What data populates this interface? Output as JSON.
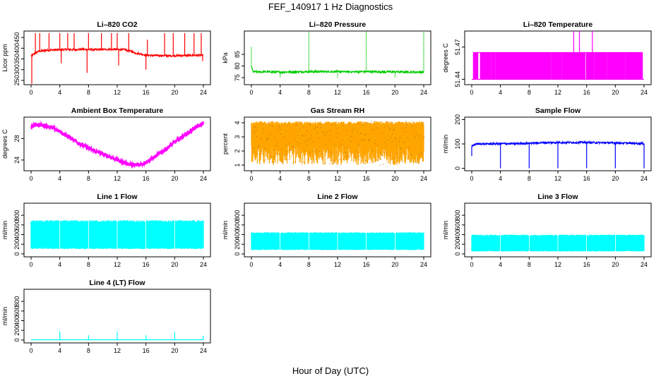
{
  "figure": {
    "title": "FEF_140917  1 Hz Diagnostics",
    "xlabel": "Hour of Day (UTC)"
  },
  "chart_data": [
    {
      "type": "line",
      "title": "Li–820 CO2",
      "ylabel": "Licor ppm",
      "color": "#ff0000",
      "xlim": [
        0,
        24
      ],
      "ylim": [
        230,
        480
      ],
      "xticks": [
        0,
        4,
        8,
        12,
        16,
        20,
        24
      ],
      "yticks": [
        250,
        300,
        350,
        400,
        450
      ],
      "series": [
        {
          "x": [
            0,
            0.3,
            0.5,
            1,
            2,
            3,
            4,
            5,
            6,
            7,
            8,
            9,
            10,
            11,
            12,
            13,
            14,
            14.5,
            15,
            15.5,
            16,
            17,
            18,
            19,
            20,
            21,
            22,
            23,
            24
          ],
          "y": [
            365,
            370,
            375,
            385,
            390,
            392,
            393,
            394,
            393,
            395,
            394,
            393,
            394,
            395,
            394,
            393,
            385,
            378,
            375,
            372,
            368,
            366,
            366,
            365,
            365,
            366,
            366,
            367,
            367
          ]
        }
      ],
      "spikes": [
        {
          "x": 0.1,
          "y": 235
        },
        {
          "x": 0.6,
          "y": 470
        },
        {
          "x": 1.2,
          "y": 470
        },
        {
          "x": 2.5,
          "y": 470
        },
        {
          "x": 4,
          "y": 470
        },
        {
          "x": 4.2,
          "y": 330
        },
        {
          "x": 5.1,
          "y": 470
        },
        {
          "x": 6,
          "y": 470
        },
        {
          "x": 7.8,
          "y": 285
        },
        {
          "x": 8,
          "y": 470
        },
        {
          "x": 9.8,
          "y": 470
        },
        {
          "x": 11.2,
          "y": 470
        },
        {
          "x": 12,
          "y": 470
        },
        {
          "x": 12.2,
          "y": 320
        },
        {
          "x": 13.6,
          "y": 470
        },
        {
          "x": 16,
          "y": 300
        },
        {
          "x": 16.2,
          "y": 440
        },
        {
          "x": 18.6,
          "y": 470
        },
        {
          "x": 19.8,
          "y": 470
        },
        {
          "x": 21.4,
          "y": 470
        },
        {
          "x": 22.7,
          "y": 470
        },
        {
          "x": 23.7,
          "y": 470
        },
        {
          "x": 23.9,
          "y": 340
        }
      ]
    },
    {
      "type": "line",
      "title": "Li–820 Pressure",
      "ylabel": "kPa",
      "color": "#00cc00",
      "xlim": [
        0,
        24
      ],
      "ylim": [
        72,
        95
      ],
      "xticks": [
        0,
        4,
        8,
        12,
        16,
        20,
        24
      ],
      "yticks": [
        75,
        80,
        85
      ],
      "series": [
        {
          "x": [
            0,
            0.2,
            0.5,
            2,
            4,
            6,
            8,
            10,
            12,
            14,
            16,
            18,
            20,
            22,
            24
          ],
          "y": [
            80,
            77.6,
            77.5,
            77.5,
            77.4,
            77.5,
            77.6,
            77.6,
            77.6,
            77.5,
            77.6,
            77.5,
            77.5,
            77.4,
            77.4
          ]
        }
      ],
      "spikes": [
        {
          "x": 0,
          "y": 88
        },
        {
          "x": 4,
          "y": 75
        },
        {
          "x": 8,
          "y": 95
        },
        {
          "x": 12,
          "y": 75
        },
        {
          "x": 16,
          "y": 95
        },
        {
          "x": 20,
          "y": 75
        },
        {
          "x": 24,
          "y": 95
        }
      ]
    },
    {
      "type": "line",
      "title": "Li–820 Temperature",
      "ylabel": "degrees C",
      "color": "#ff00ff",
      "xlim": [
        0,
        24
      ],
      "ylim": [
        51.435,
        51.485
      ],
      "xticks": [
        0,
        4,
        8,
        12,
        16,
        20,
        24
      ],
      "yticks": [
        51.44,
        51.47
      ],
      "levels": [
        51.44,
        51.465
      ],
      "band": {
        "x": [
          0,
          24
        ]
      },
      "spikes": [
        {
          "x": 14.2,
          "y": 51.485
        },
        {
          "x": 15,
          "y": 51.485
        },
        {
          "x": 16.8,
          "y": 51.485
        }
      ]
    },
    {
      "type": "line",
      "title": "Ambient Box Temperature",
      "ylabel": "degrees C",
      "color": "#ff00ff",
      "xlim": [
        0,
        24
      ],
      "ylim": [
        22,
        32
      ],
      "xticks": [
        0,
        4,
        8,
        12,
        16,
        20,
        24
      ],
      "yticks": [
        24,
        28
      ],
      "series": [
        {
          "x": [
            0,
            0.5,
            1,
            2,
            3,
            4,
            5,
            6,
            7,
            8,
            9,
            10,
            11,
            12,
            13,
            14,
            14.5,
            15,
            16,
            17,
            18,
            19,
            20,
            21,
            22,
            23,
            24
          ],
          "y": [
            30.2,
            30.5,
            30.6,
            30.4,
            30.0,
            29.3,
            28.5,
            27.7,
            26.9,
            26.2,
            25.6,
            25.1,
            24.6,
            24.0,
            23.5,
            23.1,
            23.0,
            23.1,
            23.6,
            24.4,
            25.3,
            26.3,
            27.3,
            28.3,
            29.2,
            30.1,
            30.9
          ]
        }
      ]
    },
    {
      "type": "line",
      "title": "Gas Stream RH",
      "ylabel": "percent",
      "color": "#ffa500",
      "xlim": [
        0,
        24
      ],
      "ylim": [
        0.6,
        4.4
      ],
      "xticks": [
        0,
        4,
        8,
        12,
        16,
        20,
        24
      ],
      "yticks": [
        1,
        2,
        3,
        4
      ],
      "band": {
        "x": [
          0,
          24
        ],
        "upper": 4.1,
        "lower": 1.0
      },
      "series": [
        {
          "x": [
            0,
            2,
            4,
            6,
            8,
            10,
            12,
            14,
            16,
            18,
            20,
            22,
            24
          ],
          "y": [
            4.0,
            4.05,
            4.1,
            4.1,
            4.05,
            4.0,
            4.0,
            3.95,
            3.9,
            3.95,
            3.9,
            4.0,
            4.1
          ]
        }
      ]
    },
    {
      "type": "line",
      "title": "Sample Flow",
      "ylabel": "ml/min",
      "color": "#0000ff",
      "xlim": [
        0,
        24
      ],
      "ylim": [
        -10,
        210
      ],
      "xticks": [
        0,
        4,
        8,
        12,
        16,
        20,
        24
      ],
      "yticks": [
        0,
        100,
        200
      ],
      "series": [
        {
          "x": [
            0,
            0.5,
            2,
            4,
            6,
            8,
            10,
            12,
            14,
            16,
            18,
            20,
            22,
            24
          ],
          "y": [
            90,
            100,
            100,
            101,
            101,
            103,
            105,
            106,
            106,
            106,
            105,
            104,
            103,
            102
          ]
        }
      ],
      "spikes": [
        {
          "x": 0,
          "y": 50
        },
        {
          "x": 4,
          "y": 0
        },
        {
          "x": 8,
          "y": 0
        },
        {
          "x": 12,
          "y": 0
        },
        {
          "x": 16,
          "y": 0
        },
        {
          "x": 20,
          "y": 0
        },
        {
          "x": 24,
          "y": 0
        }
      ]
    },
    {
      "type": "area",
      "title": "Line 1 Flow",
      "ylabel": "ml/min",
      "color": "#00ffff",
      "xlim": [
        0,
        24
      ],
      "ylim": [
        -60,
        1050
      ],
      "xticks": [
        0,
        4,
        8,
        12,
        16,
        20,
        24
      ],
      "yticks": [
        0,
        200,
        400,
        600,
        800
      ],
      "band": {
        "x": [
          0,
          24
        ],
        "upper": 700,
        "lower": 100
      },
      "gaps": [
        4,
        8,
        12,
        16,
        20
      ]
    },
    {
      "type": "area",
      "title": "Line 2 Flow",
      "ylabel": "ml/min",
      "color": "#00ffff",
      "xlim": [
        0,
        24
      ],
      "ylim": [
        -60,
        1050
      ],
      "xticks": [
        0,
        4,
        8,
        12,
        16,
        20,
        24
      ],
      "yticks": [
        0,
        200,
        400,
        600,
        800
      ],
      "band": {
        "x": [
          0,
          24
        ],
        "upper": 450,
        "lower": 80
      },
      "gaps": [
        4,
        8,
        12,
        16,
        20
      ]
    },
    {
      "type": "area",
      "title": "Line 3 Flow",
      "ylabel": "ml/min",
      "color": "#00ffff",
      "xlim": [
        0,
        24
      ],
      "ylim": [
        -60,
        1050
      ],
      "xticks": [
        0,
        4,
        8,
        12,
        16,
        20,
        24
      ],
      "yticks": [
        0,
        200,
        400,
        600,
        800
      ],
      "band": {
        "x": [
          0,
          24
        ],
        "upper": 400,
        "lower": 50
      },
      "gaps": [
        4,
        8,
        12,
        16,
        20
      ]
    },
    {
      "type": "line",
      "title": "Line 4 (LT) Flow",
      "ylabel": "ml/min",
      "color": "#00ffff",
      "xlim": [
        0,
        24
      ],
      "ylim": [
        -60,
        1050
      ],
      "xticks": [
        0,
        4,
        8,
        12,
        16,
        20,
        24
      ],
      "yticks": [
        0,
        200,
        400,
        600,
        800
      ],
      "series": [
        {
          "x": [
            0,
            4,
            8,
            12,
            16,
            20,
            24
          ],
          "y": [
            5,
            5,
            5,
            5,
            5,
            5,
            5
          ]
        }
      ],
      "spikes": [
        {
          "x": 4,
          "y": 180
        },
        {
          "x": 8,
          "y": 100
        },
        {
          "x": 12,
          "y": 170
        },
        {
          "x": 16,
          "y": 100
        },
        {
          "x": 20,
          "y": 170
        },
        {
          "x": 24,
          "y": 90
        }
      ]
    }
  ]
}
